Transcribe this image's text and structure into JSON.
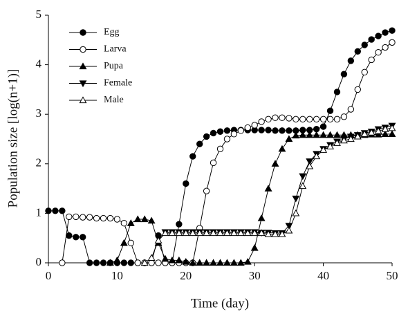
{
  "chart_data": {
    "type": "line",
    "x_label": "Time (day)",
    "y_label": "Population size [log(n+1)]",
    "x": [
      0,
      1,
      2,
      3,
      4,
      5,
      6,
      7,
      8,
      9,
      10,
      11,
      12,
      13,
      14,
      15,
      16,
      17,
      18,
      19,
      20,
      21,
      22,
      23,
      24,
      25,
      26,
      27,
      28,
      29,
      30,
      31,
      32,
      33,
      34,
      35,
      36,
      37,
      38,
      39,
      40,
      41,
      42,
      43,
      44,
      45,
      46,
      47,
      48,
      49,
      50
    ],
    "xlim": [
      0,
      50
    ],
    "xticks": [
      0,
      10,
      20,
      30,
      40,
      50
    ],
    "ylim": [
      0,
      5
    ],
    "yticks": [
      0,
      1,
      2,
      3,
      4,
      5
    ],
    "grid": false,
    "legend": "upper left",
    "series": [
      {
        "name": "Egg",
        "color": "#000000",
        "marker": "circle",
        "filled": true,
        "values": [
          1.05,
          1.05,
          1.05,
          0.55,
          0.52,
          0.52,
          0,
          0,
          0,
          0,
          0,
          0,
          0,
          0,
          0,
          0,
          0.55,
          0,
          0,
          0.78,
          1.6,
          2.15,
          2.4,
          2.55,
          2.62,
          2.65,
          2.67,
          2.68,
          2.68,
          2.68,
          2.68,
          2.68,
          2.68,
          2.67,
          2.67,
          2.67,
          2.67,
          2.68,
          2.68,
          2.7,
          2.75,
          3.07,
          3.45,
          3.81,
          4.08,
          4.27,
          4.4,
          4.51,
          4.58,
          4.65,
          4.69
        ]
      },
      {
        "name": "Larva",
        "color": "#000000",
        "marker": "circle",
        "filled": false,
        "values": [
          null,
          null,
          0,
          0.93,
          0.93,
          0.92,
          0.92,
          0.9,
          0.9,
          0.9,
          0.88,
          0.8,
          0.4,
          0,
          0,
          0,
          0,
          0,
          0,
          0,
          0,
          0,
          0.7,
          1.45,
          2.02,
          2.3,
          2.5,
          2.6,
          2.67,
          2.73,
          2.78,
          2.85,
          2.9,
          2.93,
          2.93,
          2.92,
          2.9,
          2.9,
          2.9,
          2.9,
          2.9,
          2.9,
          2.9,
          2.95,
          3.1,
          3.5,
          3.85,
          4.1,
          4.25,
          4.35,
          4.45
        ]
      },
      {
        "name": "Pupa",
        "color": "#000000",
        "marker": "triangle-up",
        "filled": true,
        "values": [
          null,
          null,
          null,
          null,
          null,
          null,
          null,
          null,
          null,
          0,
          0.05,
          0.4,
          0.8,
          0.88,
          0.88,
          0.85,
          0.4,
          0.08,
          0.05,
          0.05,
          0.02,
          0,
          0,
          0,
          0,
          0,
          0,
          0,
          0,
          0.02,
          0.3,
          0.9,
          1.5,
          2.0,
          2.3,
          2.5,
          2.57,
          2.58,
          2.58,
          2.58,
          2.58,
          2.58,
          2.58,
          2.58,
          2.58,
          2.58,
          2.58,
          2.59,
          2.59,
          2.6,
          2.6
        ]
      },
      {
        "name": "Female",
        "color": "#000000",
        "marker": "triangle-down",
        "filled": true,
        "values": [
          null,
          null,
          null,
          null,
          null,
          null,
          null,
          null,
          null,
          null,
          null,
          null,
          null,
          null,
          null,
          null,
          null,
          0.62,
          0.62,
          0.62,
          0.62,
          0.62,
          0.62,
          0.62,
          0.62,
          0.62,
          0.62,
          0.62,
          0.62,
          0.62,
          0.62,
          0.61,
          0.61,
          0.6,
          0.6,
          0.75,
          1.3,
          1.75,
          2.05,
          2.2,
          2.3,
          2.38,
          2.45,
          2.5,
          2.55,
          2.58,
          2.62,
          2.65,
          2.7,
          2.73,
          2.77
        ]
      },
      {
        "name": "Male",
        "color": "#000000",
        "marker": "triangle-up",
        "filled": false,
        "values": [
          null,
          null,
          null,
          null,
          null,
          null,
          null,
          null,
          null,
          null,
          null,
          null,
          null,
          null,
          0,
          0.1,
          0.45,
          0.6,
          0.6,
          0.6,
          0.6,
          0.6,
          0.6,
          0.6,
          0.6,
          0.6,
          0.6,
          0.6,
          0.6,
          0.6,
          0.6,
          0.6,
          0.58,
          0.58,
          0.58,
          0.65,
          1.0,
          1.55,
          1.95,
          2.15,
          2.28,
          2.35,
          2.42,
          2.47,
          2.5,
          2.55,
          2.6,
          2.63,
          2.66,
          2.7,
          2.72
        ]
      }
    ]
  }
}
